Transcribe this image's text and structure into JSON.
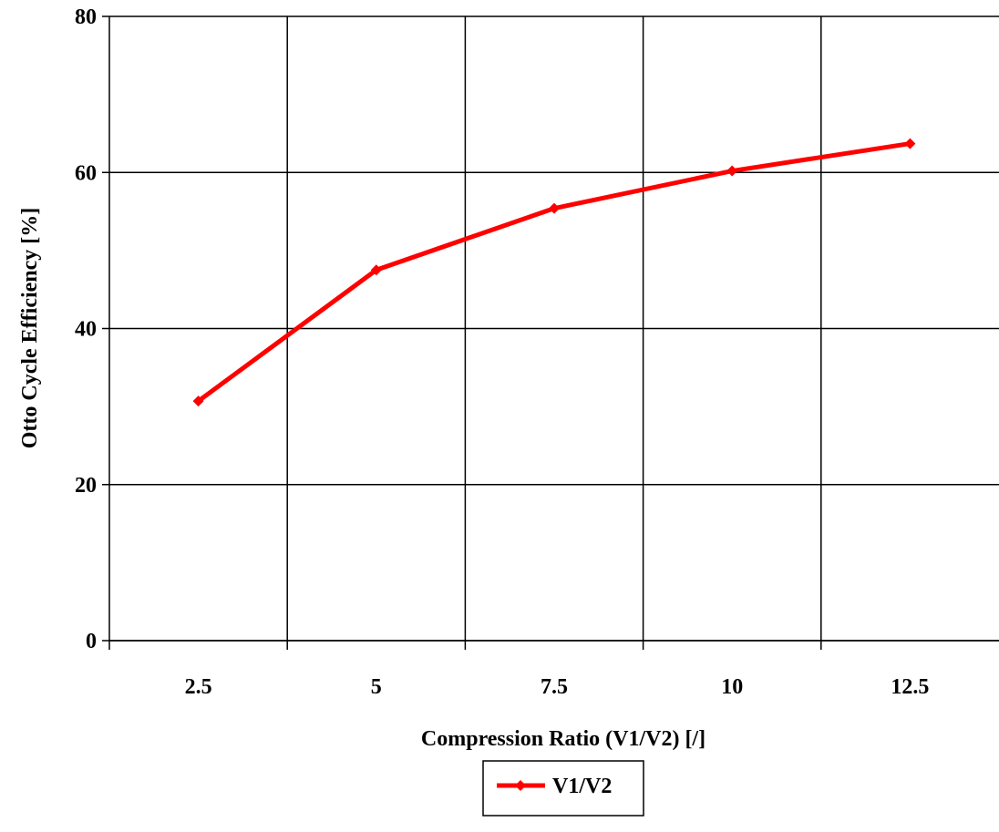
{
  "chart_data": {
    "type": "line",
    "title": "",
    "xlabel": "Compression Ratio (V1/V2) [/]",
    "ylabel": "Otto Cycle Efficiency [%]",
    "categories": [
      "2.5",
      "5",
      "7.5",
      "10",
      "12.5"
    ],
    "ylim": [
      0,
      80
    ],
    "yticks": [
      "0",
      "20",
      "40",
      "60",
      "80"
    ],
    "grid": true,
    "legend_position": "bottom-center",
    "series": [
      {
        "name": "V1/V2",
        "color": "#ff0000",
        "marker": "diamond",
        "values": [
          30.7,
          47.5,
          55.4,
          60.2,
          63.7
        ]
      }
    ]
  }
}
